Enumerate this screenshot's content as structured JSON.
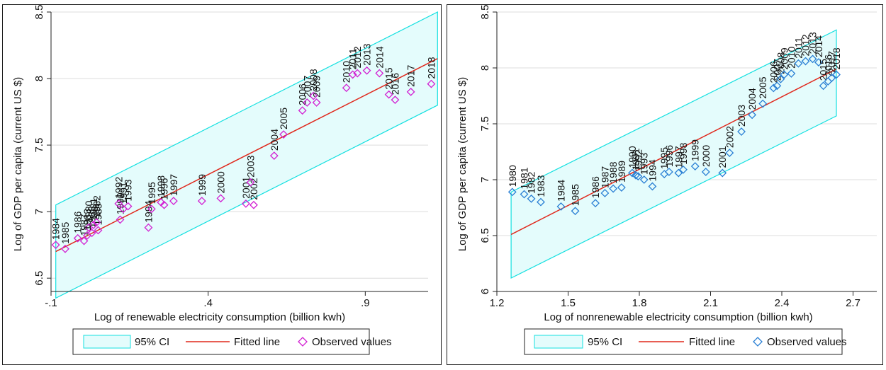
{
  "colors": {
    "ci_fill": "#e4fcfc",
    "ci_stroke": "#14e0e0",
    "fit_line": "#e0281c",
    "left_markers": "#d21fd2",
    "right_markers": "#2a7fd4",
    "grid": "#dcdcdc",
    "axis": "#222222"
  },
  "chart_data": [
    {
      "type": "scatter",
      "xlabel": "Log of renewable electricity consumption (billion kwh)",
      "ylabel": "Log of GDP per capita (current US $)",
      "xlim": [
        -0.1,
        1.1
      ],
      "ylim": [
        6.4,
        8.5
      ],
      "xticks": [
        "-.1",
        ".4",
        ".9"
      ],
      "xtick_values": [
        -0.1,
        0.4,
        0.9
      ],
      "yticks": [
        "6.5",
        "7",
        "7.5",
        "8",
        "8.5"
      ],
      "ytick_values": [
        6.5,
        7.0,
        7.5,
        8.0,
        8.5
      ],
      "grid": true,
      "legend_position": "bottom",
      "legend": [
        "95% CI",
        "Fitted line",
        "Observed values"
      ],
      "fitted_line": {
        "x": [
          -0.085,
          1.13
        ],
        "y": [
          6.7,
          8.15
        ]
      },
      "ci_band": {
        "x": [
          -0.085,
          1.13
        ],
        "upper": [
          7.05,
          8.5
        ],
        "lower": [
          6.35,
          7.8
        ]
      },
      "points": [
        {
          "label": "1984",
          "x": -0.085,
          "y": 6.75
        },
        {
          "label": "1985",
          "x": -0.055,
          "y": 6.72
        },
        {
          "label": "1986",
          "x": -0.015,
          "y": 6.8
        },
        {
          "label": "1987",
          "x": 0.005,
          "y": 6.78
        },
        {
          "label": "1988",
          "x": 0.03,
          "y": 6.84
        },
        {
          "label": "1989",
          "x": 0.05,
          "y": 6.86
        },
        {
          "label": "1980",
          "x": 0.02,
          "y": 6.88
        },
        {
          "label": "1981",
          "x": 0.035,
          "y": 6.9
        },
        {
          "label": "1982",
          "x": 0.045,
          "y": 6.92
        },
        {
          "label": "1983",
          "x": 0.015,
          "y": 6.82
        },
        {
          "label": "1990",
          "x": 0.12,
          "y": 6.94
        },
        {
          "label": "1991",
          "x": 0.13,
          "y": 7.02
        },
        {
          "label": "1992",
          "x": 0.115,
          "y": 7.06
        },
        {
          "label": "1993",
          "x": 0.145,
          "y": 7.04
        },
        {
          "label": "1994",
          "x": 0.21,
          "y": 6.88
        },
        {
          "label": "1995",
          "x": 0.22,
          "y": 7.02
        },
        {
          "label": "1996",
          "x": 0.26,
          "y": 7.05
        },
        {
          "label": "1997",
          "x": 0.29,
          "y": 7.08
        },
        {
          "label": "1998",
          "x": 0.25,
          "y": 7.07
        },
        {
          "label": "1999",
          "x": 0.38,
          "y": 7.08
        },
        {
          "label": "2000",
          "x": 0.44,
          "y": 7.1
        },
        {
          "label": "2001",
          "x": 0.52,
          "y": 7.06
        },
        {
          "label": "2002",
          "x": 0.545,
          "y": 7.05
        },
        {
          "label": "2003",
          "x": 0.535,
          "y": 7.22
        },
        {
          "label": "2004",
          "x": 0.61,
          "y": 7.42
        },
        {
          "label": "2005",
          "x": 0.64,
          "y": 7.58
        },
        {
          "label": "2006",
          "x": 0.7,
          "y": 7.76
        },
        {
          "label": "2007",
          "x": 0.715,
          "y": 7.82
        },
        {
          "label": "2008",
          "x": 0.735,
          "y": 7.87
        },
        {
          "label": "2009",
          "x": 0.745,
          "y": 7.82
        },
        {
          "label": "2010",
          "x": 0.84,
          "y": 7.93
        },
        {
          "label": "2011",
          "x": 0.86,
          "y": 8.03
        },
        {
          "label": "2012",
          "x": 0.875,
          "y": 8.04
        },
        {
          "label": "2013",
          "x": 0.905,
          "y": 8.06
        },
        {
          "label": "2014",
          "x": 0.945,
          "y": 8.04
        },
        {
          "label": "2015",
          "x": 0.975,
          "y": 7.88
        },
        {
          "label": "2016",
          "x": 0.995,
          "y": 7.84
        },
        {
          "label": "2017",
          "x": 1.045,
          "y": 7.9
        },
        {
          "label": "2018",
          "x": 1.11,
          "y": 7.96
        }
      ]
    },
    {
      "type": "scatter",
      "xlabel": "Log of nonrenewable electricity consumption (billion kwh)",
      "ylabel": "Log of GDP per capita (current US $)",
      "xlim": [
        1.2,
        2.8
      ],
      "ylim": [
        6.0,
        8.5
      ],
      "xticks": [
        "1.2",
        "1.5",
        "1.8",
        "2.1",
        "2.4",
        "2.7"
      ],
      "xtick_values": [
        1.2,
        1.5,
        1.8,
        2.1,
        2.4,
        2.7
      ],
      "yticks": [
        "6",
        "6.5",
        "7",
        "7.5",
        "8",
        "8.5"
      ],
      "ytick_values": [
        6.0,
        6.5,
        7.0,
        7.5,
        8.0,
        8.5
      ],
      "grid": true,
      "legend_position": "bottom",
      "legend": [
        "95% CI",
        "Fitted line",
        "Observed values"
      ],
      "fitted_line": {
        "x": [
          1.26,
          2.63
        ],
        "y": [
          6.51,
          7.99
        ]
      },
      "ci_band": {
        "x": [
          1.26,
          2.63
        ],
        "upper": [
          6.89,
          8.34
        ],
        "lower": [
          6.12,
          7.57
        ]
      },
      "points": [
        {
          "label": "1980",
          "x": 1.265,
          "y": 6.89
        },
        {
          "label": "1981",
          "x": 1.315,
          "y": 6.87
        },
        {
          "label": "1982",
          "x": 1.345,
          "y": 6.83
        },
        {
          "label": "1983",
          "x": 1.385,
          "y": 6.8
        },
        {
          "label": "1984",
          "x": 1.47,
          "y": 6.76
        },
        {
          "label": "1985",
          "x": 1.53,
          "y": 6.72
        },
        {
          "label": "1986",
          "x": 1.615,
          "y": 6.79
        },
        {
          "label": "1987",
          "x": 1.655,
          "y": 6.88
        },
        {
          "label": "1988",
          "x": 1.69,
          "y": 6.92
        },
        {
          "label": "1989",
          "x": 1.725,
          "y": 6.93
        },
        {
          "label": "1990",
          "x": 1.77,
          "y": 7.06
        },
        {
          "label": "1991",
          "x": 1.785,
          "y": 7.04
        },
        {
          "label": "1992",
          "x": 1.795,
          "y": 7.03
        },
        {
          "label": "1993",
          "x": 1.82,
          "y": 7.0
        },
        {
          "label": "1994",
          "x": 1.855,
          "y": 6.94
        },
        {
          "label": "1995",
          "x": 1.905,
          "y": 7.05
        },
        {
          "label": "1996",
          "x": 1.925,
          "y": 7.07
        },
        {
          "label": "1997",
          "x": 1.965,
          "y": 7.06
        },
        {
          "label": "1998",
          "x": 1.985,
          "y": 7.09
        },
        {
          "label": "1999",
          "x": 2.035,
          "y": 7.12
        },
        {
          "label": "2000",
          "x": 2.08,
          "y": 7.07
        },
        {
          "label": "2001",
          "x": 2.15,
          "y": 7.06
        },
        {
          "label": "2002",
          "x": 2.18,
          "y": 7.24
        },
        {
          "label": "2003",
          "x": 2.23,
          "y": 7.43
        },
        {
          "label": "2004",
          "x": 2.275,
          "y": 7.58
        },
        {
          "label": "2005",
          "x": 2.32,
          "y": 7.68
        },
        {
          "label": "2006",
          "x": 2.365,
          "y": 7.82
        },
        {
          "label": "2007",
          "x": 2.38,
          "y": 7.84
        },
        {
          "label": "2008",
          "x": 2.395,
          "y": 7.9
        },
        {
          "label": "2009",
          "x": 2.41,
          "y": 7.94
        },
        {
          "label": "2010",
          "x": 2.44,
          "y": 7.95
        },
        {
          "label": "2011",
          "x": 2.47,
          "y": 8.04
        },
        {
          "label": "2012",
          "x": 2.5,
          "y": 8.06
        },
        {
          "label": "2013",
          "x": 2.53,
          "y": 8.08
        },
        {
          "label": "2014",
          "x": 2.555,
          "y": 8.05
        },
        {
          "label": "2015",
          "x": 2.575,
          "y": 7.84
        },
        {
          "label": "2016",
          "x": 2.595,
          "y": 7.88
        },
        {
          "label": "2017",
          "x": 2.61,
          "y": 7.91
        },
        {
          "label": "2018",
          "x": 2.63,
          "y": 7.94
        }
      ]
    }
  ]
}
